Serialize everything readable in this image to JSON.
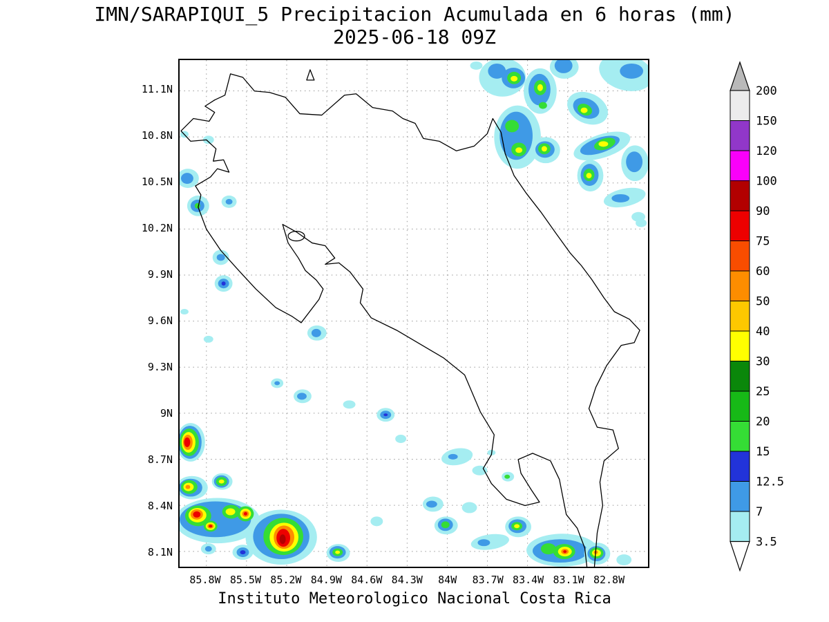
{
  "title": {
    "line1": "IMN/SARAPIQUI_5 Precipitacion Acumulada en 6 horas (mm)",
    "line2": "2025-06-18 09Z"
  },
  "footer": "Instituto Meteorologico Nacional Costa Rica",
  "axes": {
    "lat_labels": [
      "11.1N",
      "10.8N",
      "10.5N",
      "10.2N",
      "9.9N",
      "9.6N",
      "9.3N",
      "9N",
      "8.7N",
      "8.4N",
      "8.1N"
    ],
    "lat_values": [
      11.1,
      10.8,
      10.5,
      10.2,
      9.9,
      9.6,
      9.3,
      9.0,
      8.7,
      8.4,
      8.1
    ],
    "lon_labels": [
      "85.8W",
      "85.5W",
      "85.2W",
      "84.9W",
      "84.6W",
      "84.3W",
      "84W",
      "83.7W",
      "83.4W",
      "83.1W",
      "82.8W"
    ],
    "lon_values": [
      85.8,
      85.5,
      85.2,
      84.9,
      84.6,
      84.3,
      84.0,
      83.7,
      83.4,
      83.1,
      82.8
    ]
  },
  "colorbar": {
    "unit": "mm",
    "labels_top_to_bottom": [
      "200",
      "150",
      "120",
      "100",
      "90",
      "75",
      "60",
      "50",
      "40",
      "30",
      "25",
      "20",
      "15",
      "12.5",
      "7",
      "3.5"
    ],
    "segment_colors_top_to_bottom": [
      "#ececec",
      "#9137c9",
      "#fa00fa",
      "#b20000",
      "#ed0000",
      "#f94d00",
      "#fd8d00",
      "#fdc800",
      "#ffff00",
      "#0a870a",
      "#17b917",
      "#35dd35",
      "#2233d9",
      "#3f9ae6",
      "#a5edf1"
    ],
    "above_max_color": "#b9b9b9",
    "below_min_color": "#ffffff"
  },
  "chart_data": {
    "type": "heatmap",
    "title": "IMN/SARAPIQUI_5 Precipitacion Acumulada en 6 horas (mm)",
    "timestamp": "2025-06-18 09Z",
    "units": "mm",
    "region": "Costa Rica",
    "lat_ticks": [
      "8.1N",
      "8.4N",
      "8.7N",
      "9N",
      "9.3N",
      "9.6N",
      "9.9N",
      "10.2N",
      "10.5N",
      "10.8N",
      "11.1N"
    ],
    "lon_ticks": [
      "85.8W",
      "85.5W",
      "85.2W",
      "84.9W",
      "84.6W",
      "84.3W",
      "84W",
      "83.7W",
      "83.4W",
      "83.1W",
      "82.8W"
    ],
    "levels_mm": [
      3.5,
      7,
      12.5,
      15,
      20,
      25,
      30,
      40,
      50,
      60,
      75,
      90,
      100,
      120,
      150,
      200
    ],
    "grid": "dotted",
    "legend_position": "right",
    "notable_cells": [
      {
        "area": "Pacific southwest near 8.1-8.5N, 85.0-85.9W",
        "peak_level_mm": "90-100"
      },
      {
        "area": "Caribbean northeast near 10.4-11.2N, 82.8-83.8W",
        "peak_level_mm": "30-50"
      },
      {
        "area": "Southern coast near 8.1N, 83.0-83.5W",
        "peak_level_mm": "60-90"
      },
      {
        "area": "Scattered light cells interior and Pacific near 9-10N",
        "peak_level_mm": "7-15"
      }
    ]
  }
}
